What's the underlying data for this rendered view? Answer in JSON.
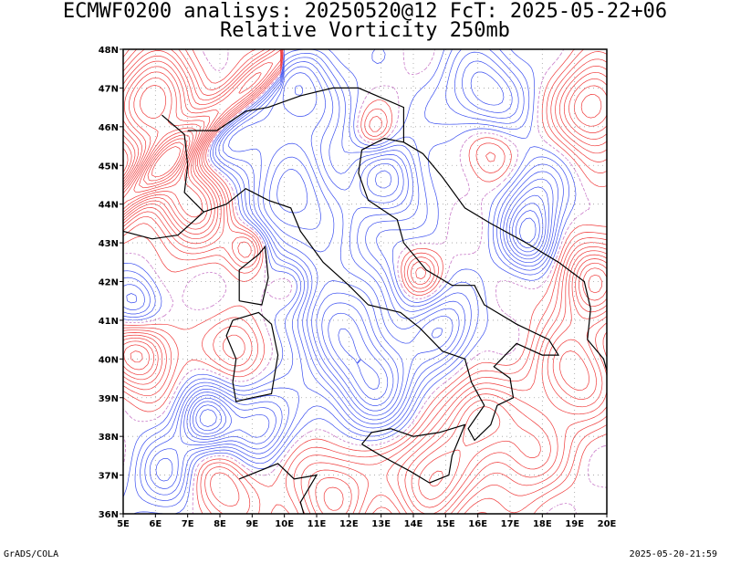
{
  "header": {
    "title_line1": "ECMWF0200 analisys: 20250520@12 FcT: 2025-05-22+06",
    "title_line2": "Relative Vorticity 250mb"
  },
  "map": {
    "region": "Italy and central Mediterranean",
    "projection": "lat-lon",
    "lon_range": [
      5,
      20
    ],
    "lat_range": [
      36,
      48
    ],
    "x_tick_labels": [
      "5E",
      "6E",
      "7E",
      "8E",
      "9E",
      "10E",
      "11E",
      "12E",
      "13E",
      "14E",
      "15E",
      "16E",
      "17E",
      "18E",
      "19E",
      "20E"
    ],
    "y_tick_labels": [
      "36N",
      "37N",
      "38N",
      "39N",
      "40N",
      "41N",
      "42N",
      "43N",
      "44N",
      "45N",
      "46N",
      "47N",
      "48N"
    ],
    "grid": true,
    "colors": {
      "positive_vorticity": "#f03c3c",
      "negative_vorticity": "#3c50f0",
      "zero_contour": "#c878c8",
      "coastline": "#000000",
      "grid": "#a0a0a0"
    }
  },
  "footer": {
    "credit_left": "GrADS/COLA",
    "credit_right": "2025-05-20-21:59"
  }
}
